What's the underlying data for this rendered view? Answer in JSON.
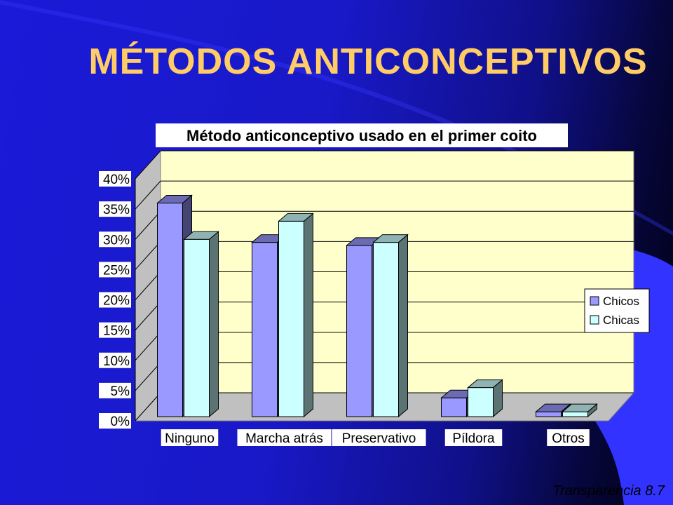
{
  "slide": {
    "title": "MÉTODOS ANTICONCEPTIVOS",
    "footer": "Transparencia 8.7"
  },
  "colors": {
    "title": "#ffcc66",
    "plot_background": "#ffffcc",
    "chicos": "#9999ff",
    "chicas": "#ccffff"
  },
  "chart_data": {
    "type": "bar",
    "title": "Método anticonceptivo usado en el primer coito",
    "categories": [
      "Ninguno",
      "Marcha atrás",
      "Preservativo",
      "Píldora",
      "Otros"
    ],
    "series": [
      {
        "name": "Chicos",
        "values": [
          36,
          29.5,
          29,
          3.8,
          1.5
        ]
      },
      {
        "name": "Chicas",
        "values": [
          30,
          33,
          29.5,
          5.5,
          1.5
        ]
      }
    ],
    "ylim": [
      0,
      40
    ],
    "yticks": [
      "0%",
      "5%",
      "10%",
      "15%",
      "20%",
      "25%",
      "30%",
      "35%",
      "40%"
    ],
    "grid": true,
    "legend": "right"
  }
}
